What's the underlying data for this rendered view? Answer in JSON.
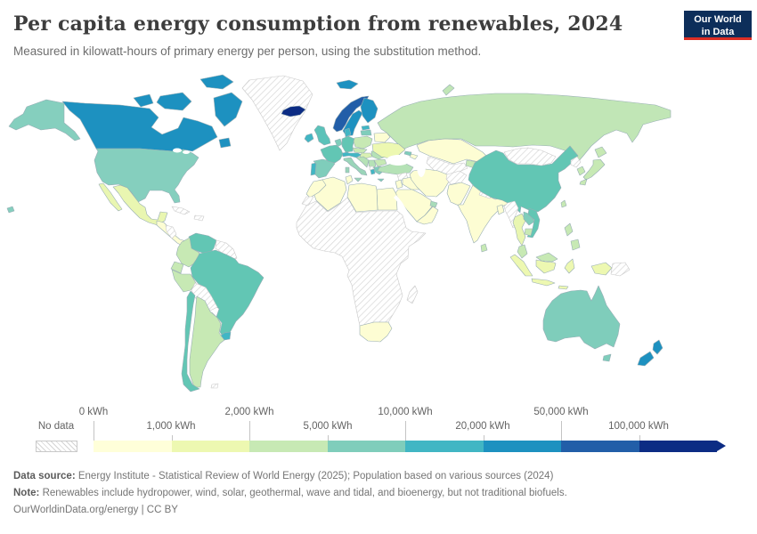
{
  "header": {
    "title": "Per capita energy consumption from renewables, 2024",
    "subtitle": "Measured in kilowatt-hours of primary energy per person, using the substitution method.",
    "logo_line1": "Our World",
    "logo_line2": "in Data",
    "logo_bg": "#0d2e5a",
    "logo_accent": "#dc2e25"
  },
  "legend": {
    "no_data_label": "No data",
    "ticks": [
      "0 kWh",
      "1,000 kWh",
      "2,000 kWh",
      "5,000 kWh",
      "10,000 kWh",
      "20,000 kWh",
      "50,000 kWh",
      "100,000 kWh"
    ],
    "colors": [
      "#ffffd9",
      "#edf8b1",
      "#c7e9b4",
      "#7fcdbb",
      "#41b6c4",
      "#1d91c0",
      "#225ea8",
      "#0c2c84"
    ]
  },
  "footer": {
    "data_source_label": "Data source:",
    "data_source_text": " Energy Institute - Statistical Review of World Energy (2025); Population based on various sources (2024)",
    "note_label": "Note:",
    "note_text": " Renewables include hydropower, wind, solar, geothermal, wave and tidal, and bioenergy, but not traditional biofuels.",
    "license": "OurWorldinData.org/energy | CC BY"
  },
  "chart_data": {
    "type": "choropleth",
    "title": "Per capita energy consumption from renewables, 2024",
    "unit": "kWh",
    "bins": [
      "0–1,000",
      "1,000–2,000",
      "2,000–5,000",
      "5,000–10,000",
      "10,000–20,000",
      "20,000–50,000",
      "50,000–100,000",
      "100,000+",
      "No data"
    ],
    "bin_colors": [
      "#ffffd9",
      "#edf8b1",
      "#c7e9b4",
      "#7fcdbb",
      "#41b6c4",
      "#1d91c0",
      "#225ea8",
      "#0c2c84",
      "hatch"
    ],
    "countries_by_bin": {
      "100,000+": [
        "Iceland"
      ],
      "50,000–100,000": [
        "Norway"
      ],
      "20,000–50,000": [
        "Canada",
        "Sweden",
        "Finland",
        "New Zealand"
      ],
      "10,000–20,000": [
        "Uruguay",
        "Portugal",
        "Austria",
        "Switzerland",
        "Denmark",
        "Ireland",
        "Estonia",
        "Albania"
      ],
      "5,000–10,000": [
        "United States",
        "Brazil",
        "Venezuela",
        "Chile",
        "China",
        "Vietnam",
        "Australia",
        "Spain",
        "France",
        "Germany",
        "United Kingdom",
        "Netherlands",
        "Belgium",
        "Greece",
        "Latvia",
        "Lithuania",
        "Italy",
        "Laos",
        "Georgia"
      ],
      "2,000–5,000": [
        "Russia",
        "Japan",
        "South Korea",
        "Taiwan",
        "Philippines",
        "Malaysia",
        "Cambodia",
        "Sri Lanka",
        "Turkey",
        "Romania",
        "Bulgaria",
        "Poland",
        "Czechia",
        "Slovakia",
        "Croatia",
        "Serbia",
        "Hungary",
        "Colombia",
        "Ecuador",
        "Peru",
        "Argentina",
        "United Arab Emirates",
        "Kyrgyzstan",
        "Tajikistan"
      ],
      "1,000–2,000": [
        "Mexico",
        "Ukraine",
        "Thailand",
        "Indonesia"
      ],
      "0–1,000": [
        "India",
        "Pakistan",
        "Bangladesh",
        "Iran",
        "Iraq",
        "Saudi Arabia",
        "Yemen",
        "Oman",
        "Egypt",
        "Libya",
        "Tunisia",
        "Algeria",
        "Morocco",
        "South Africa",
        "Kazakhstan",
        "Azerbaijan",
        "Belarus",
        "Israel",
        "Jordan"
      ],
      "No data": [
        "Greenland",
        "Cuba",
        "Haiti",
        "Dominican Republic",
        "Honduras",
        "Nicaragua",
        "Guyana",
        "Suriname",
        "Bolivia",
        "Paraguay",
        "Sub-Saharan Africa (most)",
        "Madagascar",
        "Western Sahara",
        "Syria",
        "Afghanistan",
        "Turkmenistan",
        "Uzbekistan",
        "Mongolia",
        "North Korea",
        "Nepal",
        "Myanmar",
        "Papua New Guinea",
        "Kosovo"
      ]
    }
  },
  "map": {
    "countries": {
      "greenland": "nodata",
      "canada": "#1d91c0",
      "united-states": "#85cfbe",
      "mexico": "#e9f6b1",
      "central-america": "#fdfdd3",
      "honduras-nicaragua": "nodata",
      "cuba": "nodata",
      "hispaniola": "nodata",
      "venezuela": "#62c6b4",
      "guyanas": "nodata",
      "colombia": "#c7e9b4",
      "ecuador": "#c7e9b4",
      "peru": "#c7e9b4",
      "brazil": "#62c6b4",
      "bolivia": "nodata",
      "paraguay": "nodata",
      "chile": "#62c6b4",
      "argentina": "#c7e9b4",
      "uruguay": "#41b6c4",
      "falklands": "nodata",
      "iceland": "#0c2c84",
      "svalbard": "#1d91c0",
      "norway": "#225ea8",
      "sweden": "#1d91c0",
      "finland": "#1d91c0",
      "denmark": "#41b6c4",
      "united-kingdom": "#5bc2b9",
      "ireland": "#41b6c4",
      "portugal": "#41b6c4",
      "spain": "#7fcdbb",
      "france": "#62c6b4",
      "benelux": "#7fcdbb",
      "germany": "#62c6b4",
      "poland": "#c7e9b4",
      "czech-slovakia": "#c7e9b4",
      "austria-switzerland": "#41b6c4",
      "italy": "#9ad5b9",
      "hungary": "#d9f0b2",
      "balkans": "#b5e2b6",
      "kosovo": "nodata",
      "albania": "#41b6c4",
      "romania": "#b5e2b6",
      "bulgaria": "#c7e9b4",
      "greece": "#7fcdbb",
      "estonia": "#41b6c4",
      "latvia-lithuania": "#7fcdbb",
      "belarus": "#fdfdd3",
      "ukraine": "#edf8b1",
      "russia": "#c1e6b6",
      "kazakhstan": "#fdfdd3",
      "central-asia": "nodata",
      "kyrgyzstan-tajikistan": "#c7e9b4",
      "georgia": "#7fcdbb",
      "azerbaijan": "#fdfdd3",
      "turkey": "#b5e2b6",
      "syria": "nodata",
      "iraq": "#fdfdd3",
      "iran": "#fdfdd3",
      "jordan-israel": "#fdfdd3",
      "saudi-arabia": "#fdfdd3",
      "yemen-oman": "#fdfdd3",
      "uae": "#a8dcb9",
      "egypt": "#fdfdd3",
      "libya": "#fdfdd3",
      "tunisia": "#fdfdd3",
      "algeria": "#fdfdd3",
      "morocco": "#fdfdd3",
      "western-sahara": "nodata",
      "africa-subsaharan": "nodata",
      "madagascar": "nodata",
      "south-africa": "#fdfdd3",
      "afghanistan": "nodata",
      "pakistan": "#fdfdd3",
      "india": "#fdfdd3",
      "nepal": "nodata",
      "bangladesh": "#fdfdd3",
      "sri-lanka": "#c7e9b4",
      "myanmar": "nodata",
      "thailand": "#e9f6b1",
      "laos": "#7fcdbb",
      "vietnam": "#62c6b4",
      "cambodia": "#c7e9b4",
      "malaysia": "#c7e9b4",
      "indonesia": "#edf8b1",
      "papua-new-guinea": "nodata",
      "philippines": "#c7e9b4",
      "china": "#62c6b4",
      "mongolia": "nodata",
      "north-korea": "nodata",
      "south-korea": "#c7e9b4",
      "japan": "#c7e9b4",
      "taiwan": "#c7e9b4",
      "australia": "#7fcdbb",
      "new-zealand": "#1d91c0"
    }
  }
}
